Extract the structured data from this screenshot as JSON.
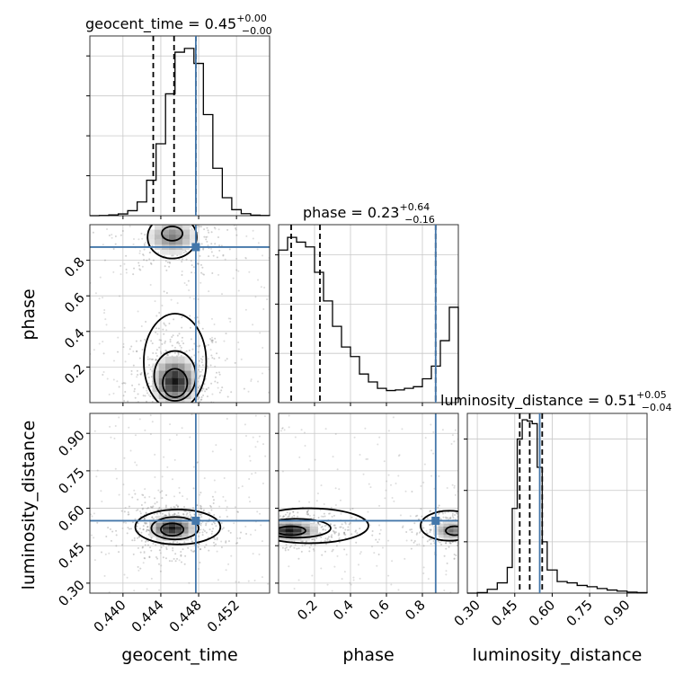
{
  "colors": {
    "truth": "#4477aa",
    "hist": "#000000",
    "grid": "#c8c8c8",
    "points": "#7a7a7a"
  },
  "chart_data": {
    "type": "corner",
    "parameters": [
      "geocent_time",
      "phase",
      "luminosity_distance"
    ],
    "truths": {
      "geocent_time": 0.4477,
      "phase": 0.874,
      "luminosity_distance": 0.55
    },
    "grid": true,
    "panels": {
      "geocent_time": {
        "title": {
          "main": "geocent_time = 0.45",
          "sup": "+0.00",
          "sub": "−0.00"
        },
        "xlim": [
          0.4365,
          0.4555
        ],
        "ticks": [
          0.44,
          0.444,
          0.448,
          0.452
        ],
        "tick_labels": [
          "0.440",
          "0.444",
          "0.448",
          "0.452"
        ],
        "xlabel": "geocent_time",
        "quantiles": [
          0.4432,
          0.4454,
          0.4477
        ],
        "hist": {
          "edges": [
            0.4365,
            0.4375,
            0.4385,
            0.4395,
            0.4405,
            0.4415,
            0.4425,
            0.4435,
            0.4445,
            0.4455,
            0.4465,
            0.4475,
            0.4485,
            0.4495,
            0.4505,
            0.4515,
            0.4525,
            0.4535,
            0.4545,
            0.4555
          ],
          "counts": [
            0,
            1,
            3,
            7,
            20,
            55,
            142,
            288,
            488,
            655,
            670,
            610,
            405,
            190,
            72,
            24,
            8,
            2,
            1
          ],
          "ymax": 720,
          "ytick_step": 160
        }
      },
      "phase": {
        "title": {
          "main": "phase = 0.23",
          "sup": "+0.64",
          "sub": "−0.16"
        },
        "xlim": [
          0.0,
          1.0
        ],
        "ticks": [
          0.2,
          0.4,
          0.6,
          0.8
        ],
        "tick_labels": [
          "0.2",
          "0.4",
          "0.6",
          "0.8"
        ],
        "ytick_labels": [
          "0.2",
          "0.4",
          "0.6",
          "0.8"
        ],
        "xlabel": "phase",
        "ylabel": "phase",
        "quantiles": [
          0.07,
          0.23,
          0.874
        ],
        "hist": {
          "edges": [
            0.0,
            0.05,
            0.1,
            0.15,
            0.2,
            0.25,
            0.3,
            0.35,
            0.4,
            0.45,
            0.5,
            0.55,
            0.6,
            0.65,
            0.7,
            0.75,
            0.8,
            0.85,
            0.9,
            0.95,
            1.0
          ],
          "counts": [
            480,
            520,
            505,
            490,
            410,
            320,
            240,
            175,
            145,
            90,
            65,
            45,
            38,
            40,
            45,
            50,
            75,
            115,
            195,
            300
          ],
          "ymax": 560,
          "ytick_step": 155
        }
      },
      "luminosity_distance": {
        "title": {
          "main": "luminosity_distance = 0.51",
          "sup": "+0.05",
          "sub": "−0.04"
        },
        "xlim": [
          0.26,
          0.98
        ],
        "ticks": [
          0.3,
          0.45,
          0.6,
          0.75,
          0.9
        ],
        "tick_labels": [
          "0.30",
          "0.45",
          "0.60",
          "0.75",
          "0.90"
        ],
        "ytick_labels": [
          "0.30",
          "0.45",
          "0.60",
          "0.75",
          "0.90"
        ],
        "xlabel": "luminosity_distance",
        "ylabel": "luminosity_distance",
        "quantiles": [
          0.47,
          0.51,
          0.56
        ],
        "hist": {
          "edges": [
            0.26,
            0.3,
            0.34,
            0.38,
            0.42,
            0.44,
            0.46,
            0.48,
            0.5,
            0.52,
            0.54,
            0.56,
            0.58,
            0.62,
            0.66,
            0.7,
            0.74,
            0.78,
            0.82,
            0.86,
            0.9,
            0.94,
            0.98
          ],
          "counts": [
            0,
            2,
            15,
            40,
            100,
            330,
            600,
            675,
            670,
            660,
            490,
            200,
            90,
            45,
            40,
            30,
            25,
            18,
            12,
            8,
            4,
            2
          ],
          "ymax": 700,
          "ytick_step": 200
        }
      }
    },
    "pairs": [
      {
        "x": "geocent_time",
        "y": "phase",
        "density_peaks": [
          {
            "x": 0.4455,
            "y": 0.12,
            "sx": 0.0012,
            "sy": 0.07,
            "w": 1.0
          },
          {
            "x": 0.4452,
            "y": 0.93,
            "sx": 0.0013,
            "sy": 0.05,
            "w": 0.55
          }
        ],
        "contours": [
          {
            "level": "inner",
            "cx": 0.4455,
            "cy": 0.11,
            "rx": 0.0013,
            "ry": 0.08
          },
          {
            "level": "middle",
            "cx": 0.4455,
            "cy": 0.15,
            "rx": 0.0022,
            "ry": 0.14
          },
          {
            "level": "outer",
            "cx": 0.4455,
            "cy": 0.23,
            "rx": 0.0033,
            "ry": 0.27
          },
          {
            "level": "top-inner",
            "cx": 0.4452,
            "cy": 0.95,
            "rx": 0.0011,
            "ry": 0.04
          },
          {
            "level": "top-outer",
            "cx": 0.4452,
            "cy": 0.93,
            "rx": 0.0026,
            "ry": 0.12
          }
        ]
      },
      {
        "x": "geocent_time",
        "y": "luminosity_distance",
        "density_peaks": [
          {
            "x": 0.4452,
            "y": 0.52,
            "sx": 0.0012,
            "sy": 0.025,
            "w": 1.0
          }
        ],
        "contours": [
          {
            "level": "inner",
            "cx": 0.4452,
            "cy": 0.515,
            "rx": 0.0012,
            "ry": 0.025
          },
          {
            "level": "middle",
            "cx": 0.4455,
            "cy": 0.52,
            "rx": 0.0025,
            "ry": 0.045
          },
          {
            "level": "outer",
            "cx": 0.4458,
            "cy": 0.525,
            "rx": 0.0045,
            "ry": 0.07
          }
        ]
      },
      {
        "x": "phase",
        "y": "luminosity_distance",
        "density_peaks": [
          {
            "x": 0.06,
            "y": 0.51,
            "sx": 0.08,
            "sy": 0.02,
            "w": 1.0
          },
          {
            "x": 0.96,
            "y": 0.51,
            "sx": 0.05,
            "sy": 0.02,
            "w": 0.6
          }
        ],
        "contours": [
          {
            "level": "inner",
            "cx": 0.07,
            "cy": 0.51,
            "rx": 0.08,
            "ry": 0.018
          },
          {
            "level": "middle",
            "cx": 0.1,
            "cy": 0.52,
            "rx": 0.19,
            "ry": 0.038
          },
          {
            "level": "outer",
            "cx": 0.17,
            "cy": 0.53,
            "rx": 0.33,
            "ry": 0.07
          },
          {
            "level": "right-inner",
            "cx": 0.98,
            "cy": 0.51,
            "rx": 0.05,
            "ry": 0.018
          },
          {
            "level": "right-outer",
            "cx": 0.95,
            "cy": 0.53,
            "rx": 0.16,
            "ry": 0.06
          }
        ]
      }
    ]
  }
}
